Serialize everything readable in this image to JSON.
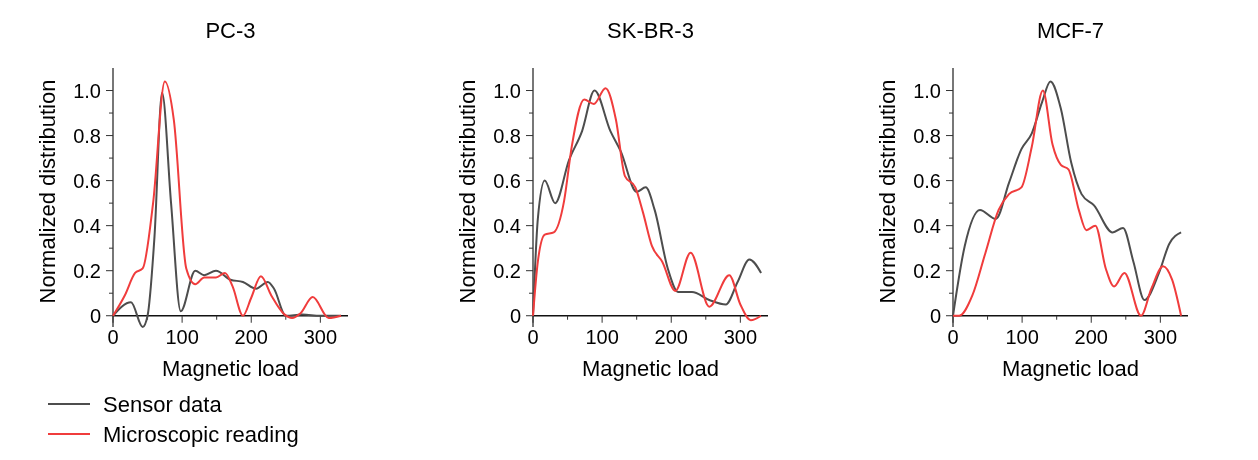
{
  "chart_data": [
    {
      "type": "line",
      "title": "PC-3",
      "xlabel": "Magnetic load",
      "ylabel": "Normalized distribution",
      "xlim": [
        0,
        340
      ],
      "ylim": [
        -0.05,
        1.1
      ],
      "xticks": [
        0,
        {
          "value": 50,
          "label": null
        },
        100,
        {
          "value": 150,
          "label": null
        },
        200,
        {
          "value": 250,
          "label": null
        },
        300
      ],
      "yticks": [
        0,
        {
          "value": 0.1,
          "label": null
        },
        0.2,
        {
          "value": 0.3,
          "label": null
        },
        0.4,
        {
          "value": 0.5,
          "label": null
        },
        0.6,
        {
          "value": 0.7,
          "label": null
        },
        0.8,
        {
          "value": 0.9,
          "label": null
        },
        {
          "value": 1.0,
          "label": "1.0"
        }
      ],
      "grid": false,
      "legend": "bottom left",
      "series": [
        {
          "name": "Sensor data",
          "color": "#4d4d4d",
          "x": [
            0,
            26,
            43,
            50,
            60,
            71,
            84,
            98,
            119,
            132,
            149,
            170,
            188,
            207,
            224,
            233,
            250,
            274,
            300,
            330
          ],
          "values": [
            0,
            0.06,
            -0.05,
            0,
            0.35,
            0.99,
            0.5,
            0.02,
            0.2,
            0.18,
            0.2,
            0.16,
            0.15,
            0.12,
            0.15,
            0.12,
            0,
            0.005,
            0,
            0
          ]
        },
        {
          "name": "Microscopic reading",
          "color": "#f03c3c",
          "x": [
            0,
            17,
            32,
            43,
            58,
            75,
            88,
            106,
            119,
            132,
            149,
            162,
            173,
            188,
            200,
            214,
            229,
            248,
            259,
            271,
            289,
            312,
            330
          ],
          "values": [
            0,
            0.09,
            0.19,
            0.21,
            0.5,
            1.04,
            0.87,
            0.21,
            0.14,
            0.17,
            0.17,
            0.19,
            0.13,
            0,
            0.08,
            0.175,
            0.09,
            0.006,
            -0.01,
            0.01,
            0.083,
            -0.01,
            0
          ]
        }
      ]
    },
    {
      "type": "line",
      "title": "SK-BR-3",
      "xlabel": "Magnetic load",
      "ylabel": "Normalized distribution",
      "xlim": [
        0,
        340
      ],
      "ylim": [
        -0.05,
        1.1
      ],
      "xticks": [
        0,
        {
          "value": 50,
          "label": null
        },
        100,
        {
          "value": 150,
          "label": null
        },
        200,
        {
          "value": 250,
          "label": null
        },
        300
      ],
      "yticks": [
        0,
        {
          "value": 0.1,
          "label": null
        },
        0.2,
        {
          "value": 0.3,
          "label": null
        },
        0.4,
        {
          "value": 0.5,
          "label": null
        },
        0.6,
        {
          "value": 0.7,
          "label": null
        },
        0.8,
        {
          "value": 0.9,
          "label": null
        },
        {
          "value": 1.0,
          "label": "1.0"
        }
      ],
      "grid": false,
      "series": [
        {
          "color": "#4d4d4d",
          "x": [
            0,
            7,
            17,
            32,
            52,
            71,
            89,
            112,
            127,
            150,
            163,
            176,
            195,
            210,
            230,
            255,
            279,
            296,
            313,
            330
          ],
          "values": [
            0,
            0.43,
            0.6,
            0.5,
            0.69,
            0.82,
            1.0,
            0.82,
            0.73,
            0.55,
            0.57,
            0.47,
            0.21,
            0.105,
            0.105,
            0.07,
            0.05,
            0.15,
            0.25,
            0.19
          ]
        },
        {
          "color": "#f03c3c",
          "x": [
            0,
            7,
            17,
            30,
            45,
            56,
            74,
            88,
            105,
            120,
            133,
            148,
            159,
            172,
            187,
            206,
            228,
            255,
            284,
            300,
            315,
            330
          ],
          "values": [
            0,
            0.24,
            0.36,
            0.37,
            0.51,
            0.75,
            0.96,
            0.94,
            1.01,
            0.87,
            0.62,
            0.57,
            0.46,
            0.31,
            0.24,
            0.11,
            0.28,
            0.04,
            0.18,
            0.05,
            -0.02,
            0
          ]
        }
      ]
    },
    {
      "type": "line",
      "title": "MCF-7",
      "xlabel": "Magnetic load",
      "ylabel": "Normalized distribution",
      "xlim": [
        0,
        340
      ],
      "ylim": [
        -0.05,
        1.1
      ],
      "xticks": [
        0,
        {
          "value": 50,
          "label": null
        },
        100,
        {
          "value": 150,
          "label": null
        },
        200,
        {
          "value": 250,
          "label": null
        },
        300
      ],
      "yticks": [
        0,
        {
          "value": 0.1,
          "label": null
        },
        0.2,
        {
          "value": 0.3,
          "label": null
        },
        0.4,
        {
          "value": 0.5,
          "label": null
        },
        0.6,
        {
          "value": 0.7,
          "label": null
        },
        0.8,
        {
          "value": 0.9,
          "label": null
        },
        {
          "value": 1.0,
          "label": "1.0"
        }
      ],
      "grid": false,
      "series": [
        {
          "color": "#4d4d4d",
          "x": [
            0,
            17,
            39,
            62,
            81,
            99,
            114,
            129,
            141,
            156,
            171,
            186,
            204,
            231,
            246,
            261,
            277,
            298,
            313,
            330
          ],
          "values": [
            0,
            0.31,
            0.47,
            0.43,
            0.59,
            0.74,
            0.81,
            0.95,
            1.04,
            0.92,
            0.68,
            0.54,
            0.49,
            0.37,
            0.39,
            0.24,
            0.07,
            0.19,
            0.32,
            0.37
          ]
        },
        {
          "color": "#f03c3c",
          "x": [
            0,
            9,
            28,
            47,
            66,
            81,
            99,
            114,
            130,
            144,
            156,
            167,
            182,
            193,
            206,
            221,
            233,
            248,
            272,
            287,
            304,
            317,
            330
          ],
          "values": [
            0,
            0,
            0.09,
            0.28,
            0.47,
            0.54,
            0.57,
            0.75,
            1.0,
            0.76,
            0.67,
            0.65,
            0.47,
            0.38,
            0.4,
            0.21,
            0.13,
            0.19,
            0,
            0.12,
            0.22,
            0.16,
            0
          ]
        }
      ]
    }
  ]
}
